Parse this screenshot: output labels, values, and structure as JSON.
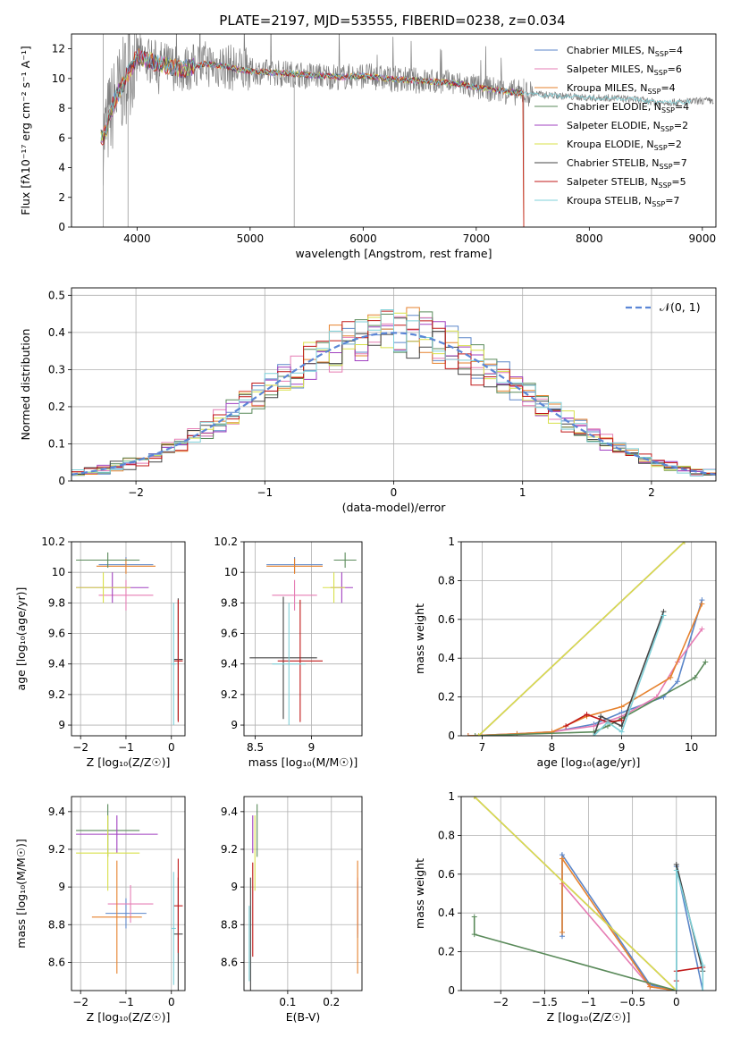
{
  "figure": {
    "title": "PLATE=2197, MJD=53555, FIBERID=0238, z=0.034"
  },
  "models": [
    {
      "name": "Chabrier MILES",
      "nssp": "4",
      "color": "#5b86c9"
    },
    {
      "name": "Salpeter MILES",
      "nssp": "6",
      "color": "#e67db4"
    },
    {
      "name": "Kroupa MILES",
      "nssp": "4",
      "color": "#e6822e"
    },
    {
      "name": "Chabrier ELODIE",
      "nssp": "4",
      "color": "#5a8a5a"
    },
    {
      "name": "Salpeter ELODIE",
      "nssp": "2",
      "color": "#a040c0"
    },
    {
      "name": "Kroupa ELODIE",
      "nssp": "2",
      "color": "#d8e04a"
    },
    {
      "name": "Chabrier STELIB",
      "nssp": "7",
      "color": "#444444"
    },
    {
      "name": "Salpeter STELIB",
      "nssp": "5",
      "color": "#c01818"
    },
    {
      "name": "Kroupa STELIB",
      "nssp": "7",
      "color": "#7fd0d8"
    }
  ],
  "chart_data": [
    {
      "id": "spectrum",
      "type": "line",
      "xlabel": "wavelength [Angstrom, rest frame]",
      "ylabel": "Flux [fλ10⁻¹⁷ erg cm⁻² s⁻¹ A⁻¹]",
      "xlim": [
        3420,
        9120
      ],
      "ylim": [
        0,
        13
      ],
      "xticks": [
        4000,
        5000,
        6000,
        7000,
        8000,
        9000
      ],
      "yticks": [
        0,
        2,
        4,
        6,
        8,
        10,
        12
      ],
      "legend": "top-right",
      "observed_spectrum": {
        "x": [
          3700,
          3800,
          3900,
          4000,
          4100,
          4200,
          4300,
          4400,
          4500,
          4600,
          4700,
          4800,
          4900,
          5000,
          5200,
          5400,
          5600,
          5800,
          6000,
          6200,
          6400,
          6600,
          6800,
          7000,
          7200,
          7400,
          7500,
          7600,
          7800,
          8000,
          8200,
          8400,
          8600,
          8800,
          9000
        ],
        "y": [
          6.0,
          8.5,
          10.0,
          11.5,
          11.2,
          11.0,
          10.8,
          10.6,
          10.8,
          11.0,
          10.9,
          10.8,
          10.6,
          10.5,
          10.4,
          10.3,
          10.2,
          10.1,
          10.2,
          10.0,
          9.9,
          9.8,
          9.7,
          9.4,
          9.2,
          9.0,
          9.0,
          8.9,
          8.8,
          8.7,
          8.7,
          8.6,
          8.4,
          8.4,
          8.5
        ]
      },
      "model_end_wavelength": 7420
    },
    {
      "id": "residuals",
      "type": "histogram",
      "xlabel": "(data-model)/error",
      "ylabel": "Normed distribution",
      "xlim": [
        -2.5,
        2.5
      ],
      "ylim": [
        0,
        0.52
      ],
      "xticks": [
        -2,
        -1,
        0,
        1,
        2
      ],
      "yticks": [
        0,
        0.1,
        0.2,
        0.3,
        0.4,
        0.5
      ],
      "legend": "top-right",
      "reference_label": "𝒩(0, 1)",
      "bin_width": 0.1
    },
    {
      "id": "age-vs-Z",
      "type": "scatter",
      "xlabel": "Z [log₁₀(Z/Z☉)]",
      "ylabel": "age  [log₁₀(age/yr)]",
      "xlim": [
        -2.2,
        0.3
      ],
      "ylim": [
        8.93,
        10.2
      ],
      "xticks": [
        -2,
        -1,
        0
      ],
      "yticks": [
        9.0,
        9.2,
        9.4,
        9.6,
        9.8,
        10.0,
        10.2
      ],
      "points": [
        {
          "model": 0,
          "x": -1.0,
          "y": 10.05,
          "xerr": 0.6,
          "yerr": 0.05
        },
        {
          "model": 1,
          "x": -1.0,
          "y": 9.85,
          "xerr": 0.6,
          "yerr": 0.1
        },
        {
          "model": 2,
          "x": -1.0,
          "y": 10.04,
          "xerr": 0.65,
          "yerr": 0.05
        },
        {
          "model": 3,
          "x": -1.4,
          "y": 10.08,
          "xerr": 0.7,
          "yerr": 0.05
        },
        {
          "model": 4,
          "x": -1.3,
          "y": 9.9,
          "xerr": 0.8,
          "yerr": 0.1
        },
        {
          "model": 5,
          "x": -1.5,
          "y": 9.9,
          "xerr": 0.6,
          "yerr": 0.1
        },
        {
          "model": 6,
          "x": 0.15,
          "y": 9.43,
          "xerr": 0.1,
          "yerr": 0.4
        },
        {
          "model": 7,
          "x": 0.15,
          "y": 9.42,
          "xerr": 0.1,
          "yerr": 0.4
        },
        {
          "model": 8,
          "x": 0.05,
          "y": 9.4,
          "xerr": 0.05,
          "yerr": 0.4
        }
      ]
    },
    {
      "id": "age-vs-mass",
      "type": "scatter",
      "xlabel": "mass [log₁₀(M/M☉)]",
      "ylabel": "",
      "xlim": [
        8.4,
        9.45
      ],
      "ylim": [
        8.93,
        10.2
      ],
      "xticks": [
        8.5,
        9.0
      ],
      "yticks": [
        9.0,
        9.2,
        9.4,
        9.6,
        9.8,
        10.0,
        10.2
      ],
      "points": [
        {
          "model": 0,
          "x": 8.85,
          "y": 10.05,
          "xerr": 0.25,
          "yerr": 0.05
        },
        {
          "model": 1,
          "x": 8.85,
          "y": 9.85,
          "xerr": 0.2,
          "yerr": 0.1
        },
        {
          "model": 2,
          "x": 8.85,
          "y": 10.04,
          "xerr": 0.25,
          "yerr": 0.05
        },
        {
          "model": 3,
          "x": 9.3,
          "y": 10.08,
          "xerr": 0.1,
          "yerr": 0.05
        },
        {
          "model": 4,
          "x": 9.27,
          "y": 9.9,
          "xerr": 0.1,
          "yerr": 0.1
        },
        {
          "model": 5,
          "x": 9.2,
          "y": 9.9,
          "xerr": 0.1,
          "yerr": 0.1
        },
        {
          "model": 6,
          "x": 8.75,
          "y": 9.44,
          "xerr": 0.3,
          "yerr": 0.4
        },
        {
          "model": 7,
          "x": 8.9,
          "y": 9.42,
          "xerr": 0.2,
          "yerr": 0.4
        },
        {
          "model": 8,
          "x": 8.8,
          "y": 9.4,
          "xerr": 0.15,
          "yerr": 0.4
        }
      ]
    },
    {
      "id": "weight-vs-age",
      "type": "line",
      "xlabel": "age  [log₁₀(age/yr)]",
      "ylabel": "mass weight",
      "xlim": [
        6.7,
        10.35
      ],
      "ylim": [
        0,
        1.0
      ],
      "xticks": [
        7,
        8,
        9,
        10
      ],
      "yticks": [
        0.0,
        0.2,
        0.4,
        0.6,
        0.8,
        1.0
      ],
      "series": [
        {
          "model": 0,
          "x": [
            6.8,
            7.5,
            8.0,
            8.6,
            9.0,
            9.6,
            9.8,
            10.15
          ],
          "y": [
            0.0,
            0.01,
            0.02,
            0.06,
            0.12,
            0.2,
            0.28,
            0.7
          ]
        },
        {
          "model": 1,
          "x": [
            6.8,
            7.5,
            8.0,
            8.6,
            9.0,
            9.5,
            9.8,
            10.15
          ],
          "y": [
            0.0,
            0.01,
            0.02,
            0.05,
            0.1,
            0.2,
            0.38,
            0.55
          ]
        },
        {
          "model": 2,
          "x": [
            6.8,
            7.5,
            8.0,
            8.5,
            9.0,
            9.7,
            10.15
          ],
          "y": [
            0.0,
            0.01,
            0.02,
            0.1,
            0.15,
            0.3,
            0.68
          ]
        },
        {
          "model": 3,
          "x": [
            6.9,
            8.6,
            8.8,
            9.0,
            10.05,
            10.2
          ],
          "y": [
            0.0,
            0.02,
            0.05,
            0.09,
            0.3,
            0.38
          ]
        },
        {
          "model": 4,
          "x": [
            6.95,
            9.9
          ],
          "y": [
            0.0,
            1.0
          ]
        },
        {
          "model": 5,
          "x": [
            6.95,
            9.9
          ],
          "y": [
            0.0,
            1.0
          ]
        },
        {
          "model": 6,
          "x": [
            8.6,
            8.7,
            9.0,
            9.6
          ],
          "y": [
            0.0,
            0.1,
            0.05,
            0.64
          ]
        },
        {
          "model": 7,
          "x": [
            8.2,
            8.5,
            8.8,
            9.0
          ],
          "y": [
            0.05,
            0.11,
            0.07,
            0.08
          ]
        },
        {
          "model": 8,
          "x": [
            8.6,
            8.8,
            9.0,
            9.6
          ],
          "y": [
            0.0,
            0.07,
            0.02,
            0.62
          ]
        }
      ]
    },
    {
      "id": "mass-vs-Z",
      "type": "scatter",
      "xlabel": "Z [log₁₀(Z/Z☉)]",
      "ylabel": "mass [log₁₀(M/M☉)]",
      "xlim": [
        -2.2,
        0.3
      ],
      "ylim": [
        8.45,
        9.48
      ],
      "xticks": [
        -2,
        -1,
        0
      ],
      "yticks": [
        8.6,
        8.8,
        9.0,
        9.2,
        9.4
      ],
      "points": [
        {
          "model": 0,
          "x": -1.0,
          "y": 8.86,
          "xerr": 0.45,
          "yerr": 0.08
        },
        {
          "model": 1,
          "x": -0.9,
          "y": 8.91,
          "xerr": 0.5,
          "yerr": 0.1
        },
        {
          "model": 2,
          "x": -1.2,
          "y": 8.84,
          "xerr": 0.55,
          "yerr": 0.3
        },
        {
          "model": 3,
          "x": -1.4,
          "y": 9.3,
          "xerr": 0.7,
          "yerr": 0.14
        },
        {
          "model": 4,
          "x": -1.2,
          "y": 9.28,
          "xerr": 0.9,
          "yerr": 0.1
        },
        {
          "model": 5,
          "x": -1.4,
          "y": 9.18,
          "xerr": 0.7,
          "yerr": 0.2
        },
        {
          "model": 6,
          "x": 0.15,
          "y": 8.75,
          "xerr": 0.1,
          "yerr": 0.3
        },
        {
          "model": 7,
          "x": 0.15,
          "y": 8.9,
          "xerr": 0.1,
          "yerr": 0.25
        },
        {
          "model": 8,
          "x": 0.05,
          "y": 8.78,
          "xerr": 0.05,
          "yerr": 0.3
        }
      ]
    },
    {
      "id": "mass-vs-ebv",
      "type": "scatter",
      "xlabel": "E(B-V)",
      "ylabel": "",
      "xlim": [
        0.0,
        0.27
      ],
      "ylim": [
        8.45,
        9.48
      ],
      "xticks": [
        0.1,
        0.2
      ],
      "yticks": [
        8.6,
        8.8,
        9.0,
        9.2,
        9.4
      ],
      "points": [
        {
          "model": 0,
          "x": 0.26,
          "y": 8.88,
          "xerr": 0,
          "yerr": 0.15
        },
        {
          "model": 1,
          "x": 0.26,
          "y": 8.9,
          "xerr": 0,
          "yerr": 0.15
        },
        {
          "model": 2,
          "x": 0.26,
          "y": 8.84,
          "xerr": 0,
          "yerr": 0.3
        },
        {
          "model": 3,
          "x": 0.03,
          "y": 9.3,
          "xerr": 0,
          "yerr": 0.14
        },
        {
          "model": 4,
          "x": 0.02,
          "y": 9.28,
          "xerr": 0,
          "yerr": 0.1
        },
        {
          "model": 5,
          "x": 0.025,
          "y": 9.18,
          "xerr": 0,
          "yerr": 0.2
        },
        {
          "model": 6,
          "x": 0.015,
          "y": 8.75,
          "xerr": 0,
          "yerr": 0.3
        },
        {
          "model": 7,
          "x": 0.02,
          "y": 8.88,
          "xerr": 0,
          "yerr": 0.25
        },
        {
          "model": 8,
          "x": 0.012,
          "y": 8.7,
          "xerr": 0,
          "yerr": 0.2
        }
      ]
    },
    {
      "id": "weight-vs-Z",
      "type": "line",
      "xlabel": "Z [log₁₀(Z/Z☉)]",
      "ylabel": "mass weight",
      "xlim": [
        -2.45,
        0.45
      ],
      "ylim": [
        0,
        1.0
      ],
      "xticks": [
        -2.0,
        -1.5,
        -1.0,
        -0.5,
        0.0,
        0.5
      ],
      "yticks": [
        0.0,
        0.2,
        0.4,
        0.6,
        0.8,
        1.0
      ],
      "series": [
        {
          "model": 0,
          "x": [
            -1.3,
            -1.3,
            -0.3,
            0.0,
            0.0,
            0.3
          ],
          "y": [
            0.28,
            0.7,
            0.03,
            0.0,
            0.64,
            0.0
          ]
        },
        {
          "model": 1,
          "x": [
            -1.3,
            -0.3,
            0.0
          ],
          "y": [
            0.55,
            0.02,
            0.0
          ]
        },
        {
          "model": 2,
          "x": [
            -1.3,
            -1.3,
            -0.3,
            0.0
          ],
          "y": [
            0.3,
            0.68,
            0.02,
            0.0
          ]
        },
        {
          "model": 3,
          "x": [
            -2.3,
            -2.3,
            0.0
          ],
          "y": [
            0.38,
            0.29,
            0.0
          ]
        },
        {
          "model": 4,
          "x": [
            -2.3,
            0.0
          ],
          "y": [
            1.0,
            0.0
          ]
        },
        {
          "model": 5,
          "x": [
            -2.3,
            0.0
          ],
          "y": [
            1.0,
            0.0
          ]
        },
        {
          "model": 6,
          "x": [
            0.0,
            0.0,
            0.3
          ],
          "y": [
            0.0,
            0.65,
            0.1
          ]
        },
        {
          "model": 7,
          "x": [
            0.0,
            0.0,
            0.3
          ],
          "y": [
            0.05,
            0.1,
            0.12
          ]
        },
        {
          "model": 8,
          "x": [
            0.0,
            0.0,
            0.3,
            0.3
          ],
          "y": [
            0.0,
            0.62,
            0.13,
            0.0
          ]
        }
      ]
    }
  ]
}
